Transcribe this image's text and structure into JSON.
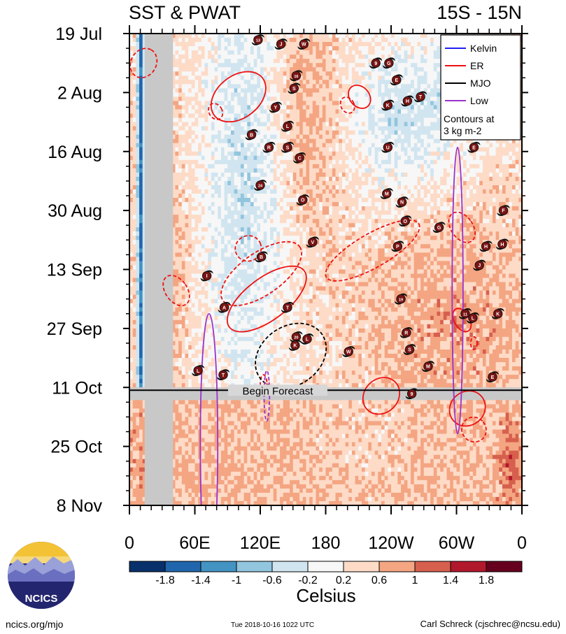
{
  "chart_data": {
    "type": "heatmap",
    "title_left": "SST & PWAT",
    "title_right": "15S - 15N",
    "y_ticks": [
      "19 Jul",
      "2 Aug",
      "16 Aug",
      "30 Aug",
      "13 Sep",
      "27 Sep",
      "11 Oct",
      "25 Oct",
      "8 Nov"
    ],
    "x_ticks": [
      "0",
      "60E",
      "120E",
      "180",
      "120W",
      "60W",
      "0"
    ],
    "x_range_deg": [
      0,
      360
    ],
    "y_range": [
      "19 Jul",
      "8 Nov"
    ],
    "forecast_label": "Begin Forecast",
    "forecast_begin_days": 84,
    "colorbar": {
      "label": "Celsius",
      "ticks": [
        "-1.8",
        "-1.4",
        "-1",
        "-0.6",
        "-0.2",
        "0.2",
        "0.6",
        "1",
        "1.4",
        "1.8"
      ],
      "colors": [
        "#08306b",
        "#2166ac",
        "#4393c3",
        "#92c5de",
        "#d1e5f0",
        "#f7f7f7",
        "#fddbc7",
        "#f4a582",
        "#d6604d",
        "#b2182b",
        "#67001f"
      ]
    },
    "legend": {
      "items": [
        {
          "label": "Kelvin",
          "color": "#1f1ff0"
        },
        {
          "label": "ER",
          "color": "#ee1111"
        },
        {
          "label": "MJO",
          "color": "#000000"
        },
        {
          "label": "Low",
          "color": "#9933cc"
        }
      ],
      "note": [
        "Contours at",
        "3 kg m-2"
      ],
      "placement": "top-right"
    },
    "storms": [
      {
        "label": "13",
        "lon": 118,
        "day": 1.5
      },
      {
        "label": "J",
        "lon": 139,
        "day": 2.5
      },
      {
        "label": "W",
        "lon": 160,
        "day": 2.5
      },
      {
        "label": "9",
        "lon": 226,
        "day": 7
      },
      {
        "label": "G",
        "lon": 238,
        "day": 7
      },
      {
        "label": "16",
        "lon": 153,
        "day": 10
      },
      {
        "label": "E",
        "lon": 245,
        "day": 11
      },
      {
        "label": "S",
        "lon": 151,
        "day": 13
      },
      {
        "label": "T",
        "lon": 267,
        "day": 15
      },
      {
        "label": "H",
        "lon": 255,
        "day": 16
      },
      {
        "label": "K",
        "lon": 237,
        "day": 17
      },
      {
        "label": "Y",
        "lon": 134,
        "day": 17.5
      },
      {
        "label": "L",
        "lon": 145,
        "day": 22
      },
      {
        "label": "B",
        "lon": 112,
        "day": 24
      },
      {
        "label": "R",
        "lon": 128,
        "day": 27
      },
      {
        "label": "S",
        "lon": 145,
        "day": 27
      },
      {
        "label": "U",
        "lon": 237,
        "day": 27
      },
      {
        "label": "E",
        "lon": 316,
        "day": 27
      },
      {
        "label": "C",
        "lon": 156,
        "day": 29.5
      },
      {
        "label": "24",
        "lon": 120,
        "day": 36
      },
      {
        "label": "M",
        "lon": 236,
        "day": 38
      },
      {
        "label": "O",
        "lon": 159,
        "day": 39.5
      },
      {
        "label": "N",
        "lon": 250,
        "day": 40
      },
      {
        "label": "F",
        "lon": 343,
        "day": 42
      },
      {
        "label": "O",
        "lon": 253,
        "day": 44.5
      },
      {
        "label": "G",
        "lon": 284,
        "day": 46
      },
      {
        "label": "V",
        "lon": 168,
        "day": 49.5
      },
      {
        "label": "P",
        "lon": 246,
        "day": 50.5
      },
      {
        "label": "H",
        "lon": 327,
        "day": 50.5
      },
      {
        "label": "H",
        "lon": 342,
        "day": 50
      },
      {
        "label": "B",
        "lon": 121,
        "day": 53
      },
      {
        "label": "J",
        "lon": 321,
        "day": 55
      },
      {
        "label": "I",
        "lon": 71,
        "day": 57.5
      },
      {
        "label": "19",
        "lon": 249,
        "day": 63
      },
      {
        "label": "A",
        "lon": 87,
        "day": 65
      },
      {
        "label": "T",
        "lon": 145,
        "day": 65
      },
      {
        "label": "11",
        "lon": 308,
        "day": 66.5
      },
      {
        "label": "L",
        "lon": 315,
        "day": 67.5
      },
      {
        "label": "K",
        "lon": 338,
        "day": 66.5
      },
      {
        "label": "R",
        "lon": 254,
        "day": 71
      },
      {
        "label": "20",
        "lon": 153,
        "day": 72
      },
      {
        "label": "L",
        "lon": 163,
        "day": 72.5
      },
      {
        "label": "K",
        "lon": 152,
        "day": 74
      },
      {
        "label": "S",
        "lon": 257,
        "day": 75
      },
      {
        "label": "W",
        "lon": 201,
        "day": 75.5
      },
      {
        "label": "L",
        "lon": 63,
        "day": 80
      },
      {
        "label": "T",
        "lon": 86,
        "day": 81
      },
      {
        "label": "M",
        "lon": 274,
        "day": 79
      },
      {
        "label": "E",
        "lon": 333,
        "day": 81.5
      },
      {
        "label": "9",
        "lon": 259,
        "day": 85.5
      }
    ],
    "contours": [
      {
        "wave": "ER",
        "style": "solid",
        "lon": 100,
        "day": 15,
        "rx": 28,
        "ry": 5,
        "angle": -38
      },
      {
        "wave": "ER",
        "style": "solid",
        "lon": 126,
        "day": 63,
        "rx": 43,
        "ry": 5,
        "angle": -37
      },
      {
        "wave": "ER",
        "style": "solid",
        "lon": 211,
        "day": 15,
        "rx": 9,
        "ry": 3,
        "angle": -40
      },
      {
        "wave": "ER",
        "style": "solid",
        "lon": 231,
        "day": 86,
        "rx": 18,
        "ry": 4,
        "angle": -45
      },
      {
        "wave": "ER",
        "style": "solid",
        "lon": 310,
        "day": 89,
        "rx": 17,
        "ry": 4,
        "angle": -40
      },
      {
        "wave": "ER",
        "style": "solid",
        "lon": 305,
        "day": 68,
        "rx": 7,
        "ry": 3,
        "angle": -30
      },
      {
        "wave": "ER",
        "style": "dashed",
        "lon": 13,
        "day": 7,
        "rx": 14,
        "ry": 3,
        "angle": -60
      },
      {
        "wave": "ER",
        "style": "dashed",
        "lon": 79,
        "day": 18.5,
        "rx": 6,
        "ry": 2,
        "angle": -30
      },
      {
        "wave": "ER",
        "style": "dashed",
        "lon": 200,
        "day": 17,
        "rx": 6,
        "ry": 2,
        "angle": -30
      },
      {
        "wave": "ER",
        "style": "dashed",
        "lon": 109,
        "day": 51,
        "rx": 12,
        "ry": 3,
        "angle": -25
      },
      {
        "wave": "ER",
        "style": "dashed",
        "lon": 121,
        "day": 57,
        "rx": 43,
        "ry": 5,
        "angle": -35
      },
      {
        "wave": "ER",
        "style": "dashed",
        "lon": 223,
        "day": 51.5,
        "rx": 49,
        "ry": 4,
        "angle": -30
      },
      {
        "wave": "ER",
        "style": "dashed",
        "lon": 43,
        "day": 61,
        "rx": 10,
        "ry": 4,
        "angle": -35
      },
      {
        "wave": "ER",
        "style": "dashed",
        "lon": 305,
        "day": 46,
        "rx": 10,
        "ry": 4,
        "angle": -35
      },
      {
        "wave": "ER",
        "style": "dashed",
        "lon": 316,
        "day": 94,
        "rx": 11,
        "ry": 3,
        "angle": -40
      },
      {
        "wave": "ER",
        "style": "dashed",
        "lon": 123,
        "day": 83,
        "rx": 3,
        "ry": 2,
        "angle": 0
      },
      {
        "wave": "ER",
        "style": "dashed",
        "lon": 316,
        "day": 73.5,
        "rx": 3,
        "ry": 1.5,
        "angle": 0
      },
      {
        "wave": "MJO",
        "style": "dashed",
        "lon": 148,
        "day": 76.5,
        "rx": 27,
        "ry": 9,
        "angle": 55
      },
      {
        "wave": "Low",
        "style": "solid",
        "lon": 301,
        "day": 61,
        "rx": 5,
        "ry": 34,
        "angle": 0
      },
      {
        "wave": "Low",
        "style": "solid",
        "lon": 73,
        "day": 97.5,
        "rx": 8,
        "ry": 31,
        "angle": 0
      },
      {
        "wave": "Low",
        "style": "dashed",
        "lon": 126,
        "day": 86,
        "rx": 2.5,
        "ry": 6,
        "angle": 0
      }
    ]
  },
  "footer": {
    "url": "ncics.org/mjo",
    "timestamp": "Tue 2018-10-16 1022 UTC",
    "author": "Carl Schreck (cjschrec@ncsu.edu)",
    "logo_text": "NCICS"
  }
}
